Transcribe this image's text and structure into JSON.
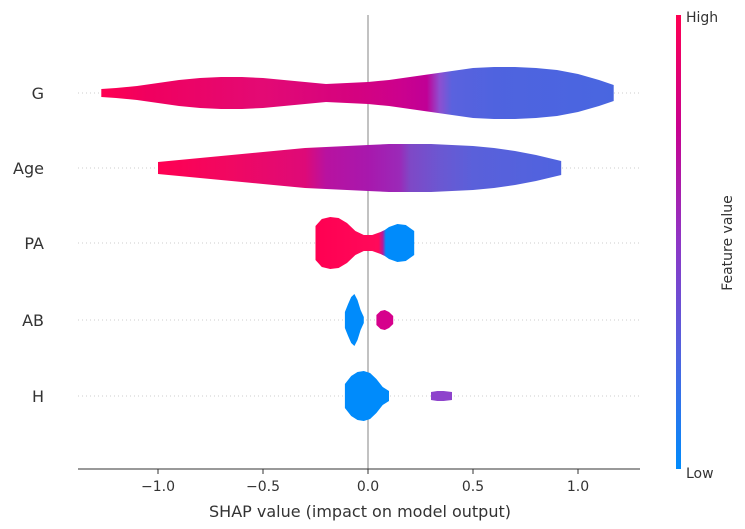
{
  "chart_data": {
    "type": "violin",
    "xlabel": "SHAP value (impact on model output)",
    "xlim": [
      -1.4,
      1.3
    ],
    "xticks": [
      -1.0,
      -0.5,
      0.0,
      0.5,
      1.0
    ],
    "xtick_labels": [
      "−1.0",
      "−0.5",
      "0.0",
      "0.5",
      "1.0"
    ],
    "reference_line_x": 0.0,
    "colorbar": {
      "label": "Feature value",
      "high_label": "High",
      "low_label": "Low",
      "high_color": "#ff0052",
      "low_color": "#008bfb"
    },
    "features": [
      {
        "name": "G",
        "range": [
          -1.27,
          1.17
        ],
        "half_width": [
          [
            -1.27,
            4
          ],
          [
            -1.2,
            5
          ],
          [
            -1.1,
            7
          ],
          [
            -1.0,
            10
          ],
          [
            -0.9,
            13
          ],
          [
            -0.8,
            15
          ],
          [
            -0.7,
            16
          ],
          [
            -0.6,
            16
          ],
          [
            -0.5,
            15
          ],
          [
            -0.4,
            13
          ],
          [
            -0.3,
            11
          ],
          [
            -0.2,
            9
          ],
          [
            -0.1,
            10
          ],
          [
            0.0,
            11
          ],
          [
            0.1,
            13
          ],
          [
            0.2,
            16
          ],
          [
            0.3,
            19
          ],
          [
            0.4,
            22
          ],
          [
            0.5,
            25
          ],
          [
            0.6,
            26
          ],
          [
            0.7,
            26
          ],
          [
            0.8,
            25
          ],
          [
            0.9,
            23
          ],
          [
            1.0,
            19
          ],
          [
            1.1,
            13
          ],
          [
            1.17,
            8
          ]
        ],
        "color_stops": [
          [
            -1.27,
            "#ff0052"
          ],
          [
            -1.05,
            "#f0005f"
          ],
          [
            -0.5,
            "#e30a74"
          ],
          [
            -0.05,
            "#d40280"
          ],
          [
            0.15,
            "#cc018d"
          ],
          [
            0.28,
            "#c00096"
          ],
          [
            0.34,
            "#8f4ed0"
          ],
          [
            0.4,
            "#5a62de"
          ],
          [
            0.6,
            "#4f63df"
          ],
          [
            1.17,
            "#4966e0"
          ]
        ]
      },
      {
        "name": "Age",
        "range": [
          -1.0,
          0.92
        ],
        "half_width": [
          [
            -1.0,
            6
          ],
          [
            -0.9,
            8
          ],
          [
            -0.8,
            10
          ],
          [
            -0.7,
            12
          ],
          [
            -0.6,
            14
          ],
          [
            -0.5,
            16
          ],
          [
            -0.4,
            18
          ],
          [
            -0.3,
            20
          ],
          [
            -0.2,
            21
          ],
          [
            -0.1,
            22
          ],
          [
            0.0,
            23
          ],
          [
            0.1,
            24
          ],
          [
            0.2,
            24
          ],
          [
            0.3,
            24
          ],
          [
            0.4,
            23
          ],
          [
            0.5,
            22
          ],
          [
            0.6,
            20
          ],
          [
            0.7,
            17
          ],
          [
            0.8,
            13
          ],
          [
            0.92,
            7
          ]
        ],
        "color_stops": [
          [
            -1.0,
            "#ff0052"
          ],
          [
            -0.65,
            "#f00862"
          ],
          [
            -0.3,
            "#de0a78"
          ],
          [
            -0.2,
            "#b812a0"
          ],
          [
            0.0,
            "#a818ad"
          ],
          [
            0.15,
            "#9b29b8"
          ],
          [
            0.2,
            "#7f48c6"
          ],
          [
            0.35,
            "#6a58d2"
          ],
          [
            0.5,
            "#5a60da"
          ],
          [
            0.92,
            "#4f63df"
          ]
        ]
      },
      {
        "name": "PA",
        "range": [
          -0.25,
          0.22
        ],
        "half_width": [
          [
            -0.25,
            17
          ],
          [
            -0.22,
            24
          ],
          [
            -0.18,
            26
          ],
          [
            -0.14,
            25
          ],
          [
            -0.1,
            20
          ],
          [
            -0.06,
            12
          ],
          [
            -0.02,
            8
          ],
          [
            0.02,
            8
          ],
          [
            0.06,
            11
          ],
          [
            0.08,
            13
          ],
          [
            0.1,
            16
          ],
          [
            0.14,
            19
          ],
          [
            0.18,
            18
          ],
          [
            0.22,
            12
          ]
        ],
        "color_stops": [
          [
            -0.25,
            "#ff0052"
          ],
          [
            0.05,
            "#ff0a5a"
          ],
          [
            0.07,
            "#b8189c"
          ],
          [
            0.085,
            "#008bfb"
          ],
          [
            0.22,
            "#008bfb"
          ]
        ]
      },
      {
        "name": "AB",
        "range": [
          -0.11,
          0.12
        ],
        "segments": [
          {
            "range": [
              -0.11,
              -0.02
            ],
            "half_width": [
              [
                -0.11,
                8
              ],
              [
                -0.095,
                16
              ],
              [
                -0.08,
                23
              ],
              [
                -0.065,
                26
              ],
              [
                -0.05,
                20
              ],
              [
                -0.035,
                10
              ],
              [
                -0.02,
                3
              ]
            ],
            "color": "#008bfb"
          },
          {
            "range": [
              0.04,
              0.12
            ],
            "half_width": [
              [
                0.04,
                5
              ],
              [
                0.06,
                9
              ],
              [
                0.08,
                10
              ],
              [
                0.1,
                8
              ],
              [
                0.12,
                4
              ]
            ],
            "color": "#d6018c"
          }
        ]
      },
      {
        "name": "H",
        "range": [
          -0.11,
          0.4
        ],
        "segments": [
          {
            "range": [
              -0.11,
              0.1
            ],
            "half_width": [
              [
                -0.11,
                12
              ],
              [
                -0.08,
                20
              ],
              [
                -0.05,
                24
              ],
              [
                -0.02,
                25
              ],
              [
                0.01,
                23
              ],
              [
                0.04,
                17
              ],
              [
                0.07,
                9
              ],
              [
                0.1,
                5
              ]
            ],
            "color": "#008bfb"
          },
          {
            "range": [
              0.3,
              0.4
            ],
            "half_width": [
              [
                0.3,
                4
              ],
              [
                0.33,
                5
              ],
              [
                0.36,
                5
              ],
              [
                0.4,
                4
              ]
            ],
            "color": "#8e43cc"
          }
        ]
      }
    ]
  }
}
